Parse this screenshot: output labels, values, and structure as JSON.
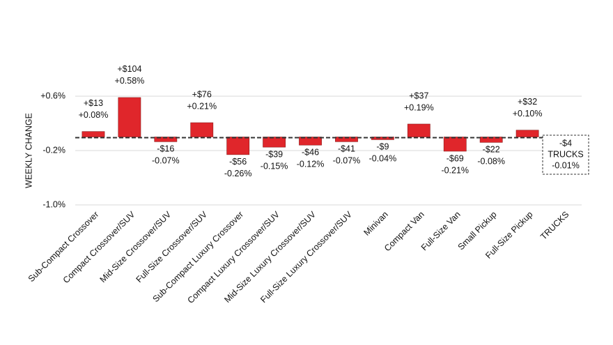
{
  "chart_data": {
    "type": "bar",
    "y_label": "WEEKLY CHANGE",
    "categories": [
      "Sub-Compact Crossover",
      "Compact Crossover/SUV",
      "Mid-Size Crossover/SUV",
      "Full-Size Crossover/SUV",
      "Sub-Compact Luxury Crossover",
      "Compact Luxury Crossover/SUV",
      "Mid-Size Luxury Crossover/SUV",
      "Full-Size Luxury Crossover/SUV",
      "Minivan",
      "Compact Van",
      "Full-Size Van",
      "Small Pickup",
      "Full-Size Pickup",
      "TRUCKS"
    ],
    "values": [
      0.08,
      0.58,
      -0.07,
      0.21,
      -0.26,
      -0.15,
      -0.12,
      -0.07,
      -0.04,
      0.19,
      -0.21,
      -0.08,
      0.1,
      -0.01
    ],
    "value_labels": [
      "+0.08%",
      "+0.58%",
      "-0.07%",
      "+0.21%",
      "-0.26%",
      "-0.15%",
      "-0.12%",
      "-0.07%",
      "-0.04%",
      "+0.19%",
      "-0.21%",
      "-0.08%",
      "+0.10%",
      "-0.01%"
    ],
    "dollar_labels": [
      "+$13",
      "+$104",
      "-$16",
      "+$76",
      "-$56",
      "-$39",
      "-$46",
      "-$41",
      "-$9",
      "+$37",
      "-$69",
      "-$22",
      "+$32",
      "-$4"
    ],
    "color": "#e0262b",
    "ylim": [
      -1.0,
      0.6
    ],
    "yticks": [
      {
        "value": 0.6,
        "label": "+0.6%"
      },
      {
        "value": -0.2,
        "label": "-0.2%"
      },
      {
        "value": -1.0,
        "label": "-1.0%"
      }
    ],
    "grid": true
  }
}
